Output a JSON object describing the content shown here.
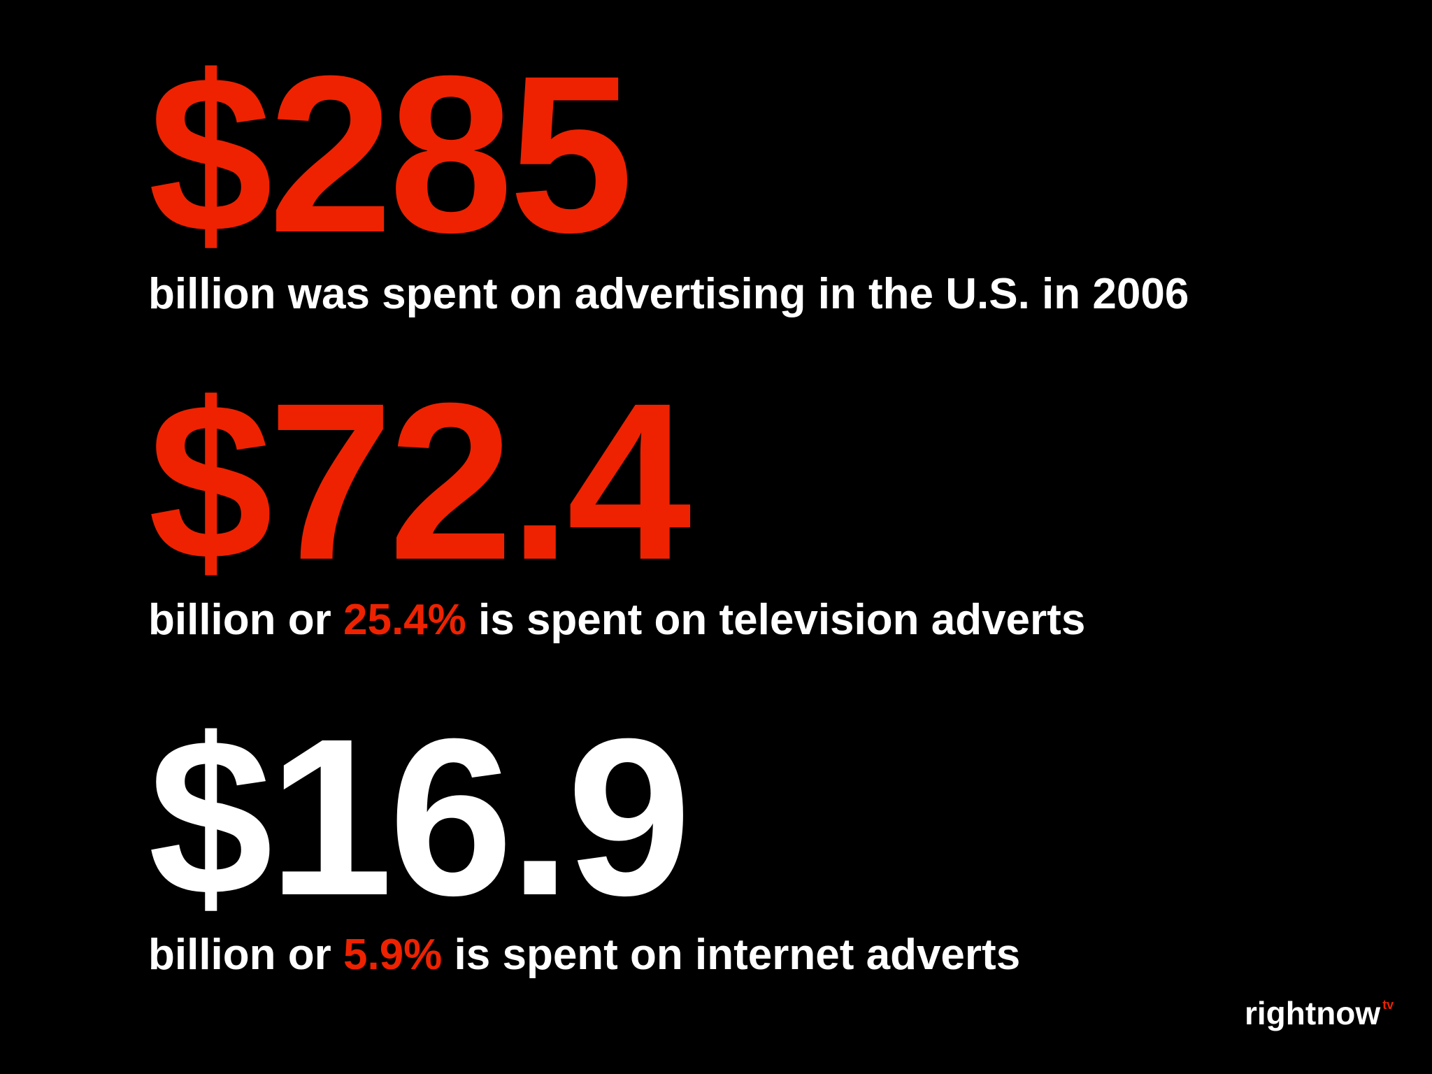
{
  "colors": {
    "background": "#000000",
    "accent_red": "#ee2200",
    "text_white": "#ffffff"
  },
  "stats": [
    {
      "value": "$285",
      "caption": "billion was spent on advertising in the U.S. in 2006"
    },
    {
      "value": "$72.4",
      "caption_prefix": "billion or ",
      "caption_highlight": "25.4%",
      "caption_suffix": " is spent on television adverts"
    },
    {
      "value": "$16.9",
      "caption_prefix": "billion or ",
      "caption_highlight": "5.9%",
      "caption_suffix": " is spent on internet adverts"
    }
  ],
  "logo": {
    "text": "rightnow",
    "superscript": "tv"
  }
}
